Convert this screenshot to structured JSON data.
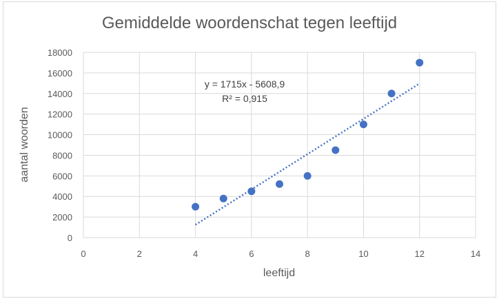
{
  "chart_data": {
    "type": "scatter",
    "title": "Gemiddelde woordenschat tegen leeftijd",
    "xlabel": "leeftijd",
    "ylabel": "aantal woorden",
    "xlim": [
      0,
      14
    ],
    "ylim": [
      0,
      18000
    ],
    "x_ticks": [
      "0",
      "2",
      "4",
      "6",
      "8",
      "10",
      "12",
      "14"
    ],
    "y_ticks": [
      "0",
      "2000",
      "4000",
      "6000",
      "8000",
      "10000",
      "12000",
      "14000",
      "16000",
      "18000"
    ],
    "grid": true,
    "series": [
      {
        "x": [
          4,
          5,
          6,
          7,
          8,
          9,
          10,
          11,
          12
        ],
        "y": [
          3000,
          3800,
          4500,
          5200,
          6000,
          8500,
          11000,
          14000,
          17000
        ],
        "color": "#4472C4"
      }
    ],
    "trendline": {
      "slope": 1715,
      "intercept": -5608.9,
      "x_range": [
        4,
        12
      ],
      "equation": "y = 1715x - 5608,9",
      "r_squared": "R² = 0,915",
      "color": "#4472C4"
    }
  }
}
